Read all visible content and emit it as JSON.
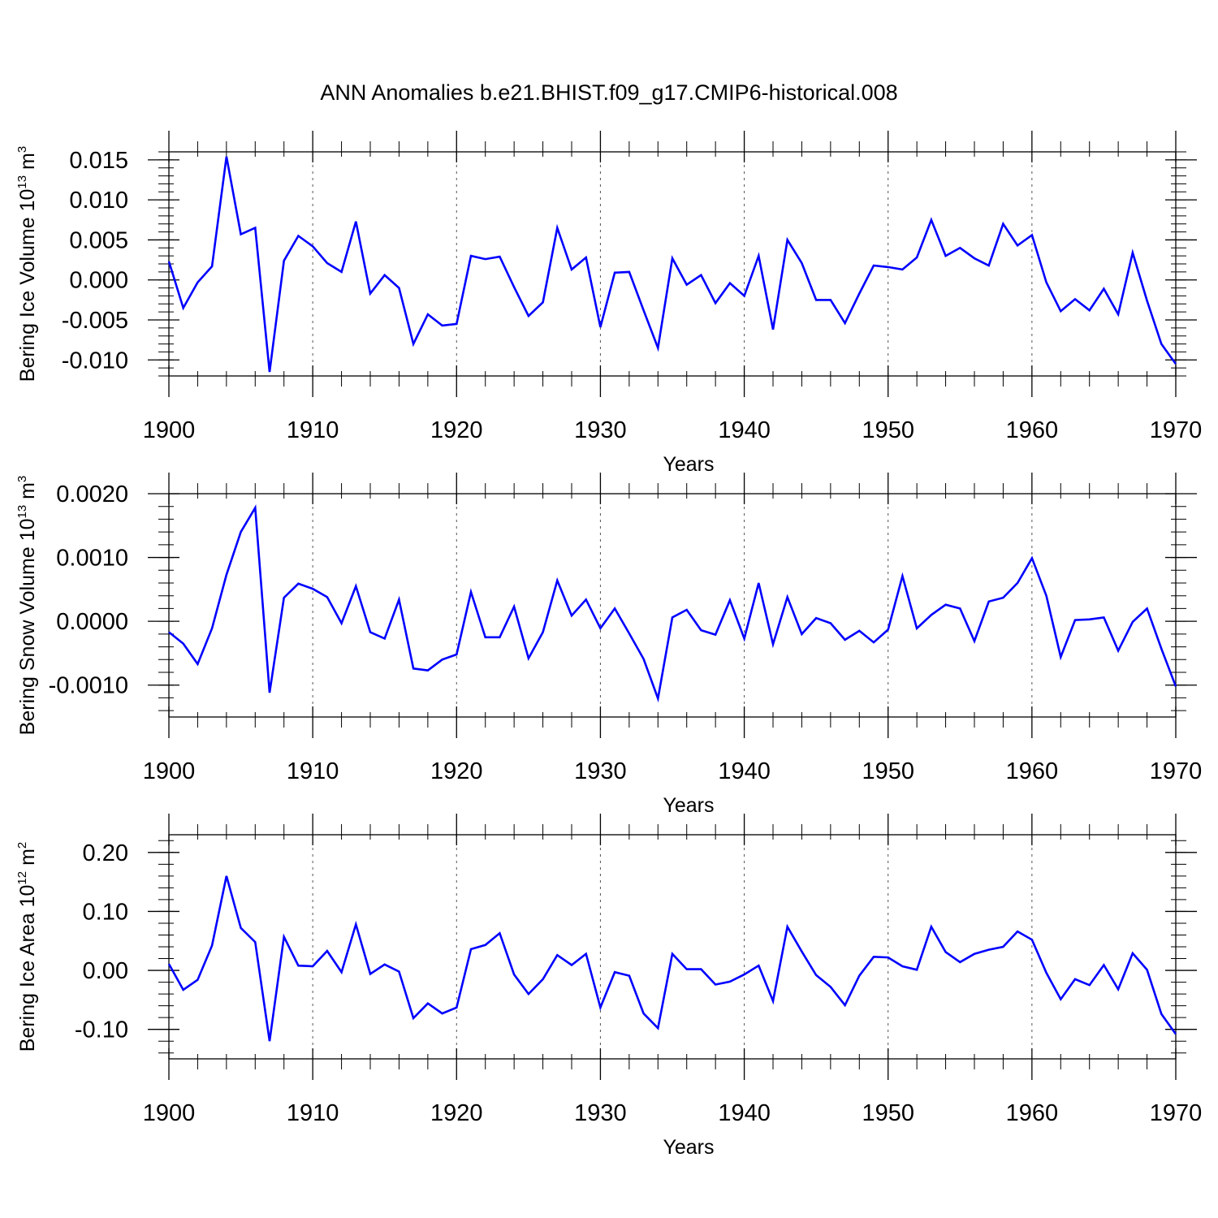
{
  "title": "ANN Anomalies b.e21.BHIST.f09_g17.CMIP6-historical.008",
  "chart_data": [
    {
      "type": "line",
      "title": "ANN Anomalies b.e21.BHIST.f09_g17.CMIP6-historical.008",
      "ylabel": "Bering Ice Volume 10",
      "ylabel_exponent": "13",
      "ylabel_unit": " m",
      "ylabel_unit_exponent": "3",
      "xlabel": "Years",
      "xlim": [
        1900,
        1970
      ],
      "ylim": [
        -0.012,
        0.016
      ],
      "x_ticks": [
        1900,
        1910,
        1920,
        1930,
        1940,
        1950,
        1960,
        1970
      ],
      "x_tick_labels": [
        "1900",
        "1910",
        "1920",
        "1930",
        "1940",
        "1950",
        "1960",
        "1970"
      ],
      "y_ticks": [
        -0.01,
        -0.005,
        0.0,
        0.005,
        0.01,
        0.015
      ],
      "y_tick_labels": [
        "-0.010",
        "-0.005",
        "0.000",
        "0.005",
        "0.010",
        "0.015"
      ],
      "y_minor_step": 0.001,
      "color": "#0000ff",
      "grid": "dashed vertical at major x ticks",
      "series": [
        {
          "name": "Bering Ice Volume",
          "x": [
            1900,
            1901,
            1902,
            1903,
            1904,
            1905,
            1906,
            1907,
            1908,
            1909,
            1910,
            1911,
            1912,
            1913,
            1914,
            1915,
            1916,
            1917,
            1918,
            1919,
            1920,
            1921,
            1922,
            1923,
            1924,
            1925,
            1926,
            1927,
            1928,
            1929,
            1930,
            1931,
            1932,
            1933,
            1934,
            1935,
            1936,
            1937,
            1938,
            1939,
            1940,
            1941,
            1942,
            1943,
            1944,
            1945,
            1946,
            1947,
            1948,
            1949,
            1950,
            1951,
            1952,
            1953,
            1954,
            1955,
            1956,
            1957,
            1958,
            1959,
            1960,
            1961,
            1962,
            1963,
            1964,
            1965,
            1966,
            1967,
            1968,
            1969,
            1970
          ],
          "values": [
            0.0023,
            -0.0035,
            -0.0003,
            0.0017,
            0.0154,
            0.0057,
            0.0065,
            -0.0115,
            0.0024,
            0.0055,
            0.0042,
            0.0021,
            0.001,
            0.0073,
            -0.0017,
            0.0006,
            -0.001,
            -0.008,
            -0.0043,
            -0.0057,
            -0.0055,
            0.003,
            0.0026,
            0.0029,
            -0.0009,
            -0.0045,
            -0.0028,
            0.0065,
            0.0013,
            0.0028,
            -0.0059,
            0.0009,
            0.001,
            -0.0038,
            -0.0085,
            0.0027,
            -0.0006,
            0.0006,
            -0.0029,
            -0.0004,
            -0.002,
            0.003,
            -0.0062,
            0.005,
            0.0021,
            -0.0025,
            -0.0025,
            -0.0054,
            -0.0017,
            0.0018,
            0.0016,
            0.0013,
            0.0028,
            0.0075,
            0.003,
            0.004,
            0.0027,
            0.0018,
            0.007,
            0.0043,
            0.0056,
            -0.0003,
            -0.0039,
            -0.0024,
            -0.0038,
            -0.0011,
            -0.0043,
            0.0034,
            -0.0026,
            -0.008,
            -0.0105
          ]
        }
      ]
    },
    {
      "type": "line",
      "ylabel": "Bering Snow Volume 10",
      "ylabel_exponent": "13",
      "ylabel_unit": " m",
      "ylabel_unit_exponent": "3",
      "xlabel": "Years",
      "xlim": [
        1900,
        1970
      ],
      "ylim": [
        -0.0015,
        0.002
      ],
      "x_ticks": [
        1900,
        1910,
        1920,
        1930,
        1940,
        1950,
        1960,
        1970
      ],
      "x_tick_labels": [
        "1900",
        "1910",
        "1920",
        "1930",
        "1940",
        "1950",
        "1960",
        "1970"
      ],
      "y_ticks": [
        -0.001,
        0.0,
        0.001,
        0.002
      ],
      "y_tick_labels": [
        "-0.0010",
        "0.0000",
        "0.0010",
        "0.0020"
      ],
      "y_minor_step": 0.0002,
      "color": "#0000ff",
      "grid": "dashed vertical at major x ticks",
      "series": [
        {
          "name": "Bering Snow Volume",
          "x": [
            1900,
            1901,
            1902,
            1903,
            1904,
            1905,
            1906,
            1907,
            1908,
            1909,
            1910,
            1911,
            1912,
            1913,
            1914,
            1915,
            1916,
            1917,
            1918,
            1919,
            1920,
            1921,
            1922,
            1923,
            1924,
            1925,
            1926,
            1927,
            1928,
            1929,
            1930,
            1931,
            1932,
            1933,
            1934,
            1935,
            1936,
            1937,
            1938,
            1939,
            1940,
            1941,
            1942,
            1943,
            1944,
            1945,
            1946,
            1947,
            1948,
            1949,
            1950,
            1951,
            1952,
            1953,
            1954,
            1955,
            1956,
            1957,
            1958,
            1959,
            1960,
            1961,
            1962,
            1963,
            1964,
            1965,
            1966,
            1967,
            1968,
            1969,
            1970
          ],
          "values": [
            -0.00017,
            -0.00035,
            -0.00067,
            -0.00011,
            0.00073,
            0.0014,
            0.00178,
            -0.00112,
            0.00037,
            0.00059,
            0.00051,
            0.00038,
            -3e-05,
            0.00055,
            -0.00017,
            -0.00027,
            0.00034,
            -0.00074,
            -0.00077,
            -0.0006,
            -0.00052,
            0.00046,
            -0.00025,
            -0.00025,
            0.00023,
            -0.00058,
            -0.00017,
            0.00064,
            9e-05,
            0.00034,
            -0.00011,
            0.0002,
            -0.00019,
            -0.00059,
            -0.00121,
            6e-05,
            0.00018,
            -0.00014,
            -0.00021,
            0.00033,
            -0.00027,
            0.0006,
            -0.00036,
            0.00038,
            -0.0002,
            5e-05,
            -3e-05,
            -0.00029,
            -0.00015,
            -0.00033,
            -0.00013,
            0.00071,
            -0.00011,
            0.0001,
            0.00026,
            0.0002,
            -0.00031,
            0.00031,
            0.00037,
            0.0006,
            0.00099,
            0.0004,
            -0.00056,
            2e-05,
            3e-05,
            6e-05,
            -0.00046,
            -1e-05,
            0.0002,
            -0.00043,
            -0.00102
          ]
        }
      ]
    },
    {
      "type": "line",
      "ylabel": "Bering Ice Area 10",
      "ylabel_exponent": "12",
      "ylabel_unit": " m",
      "ylabel_unit_exponent": "2",
      "xlabel": "Years",
      "xlim": [
        1900,
        1970
      ],
      "ylim": [
        -0.15,
        0.23
      ],
      "x_ticks": [
        1900,
        1910,
        1920,
        1930,
        1940,
        1950,
        1960,
        1970
      ],
      "x_tick_labels": [
        "1900",
        "1910",
        "1920",
        "1930",
        "1940",
        "1950",
        "1960",
        "1970"
      ],
      "y_ticks": [
        -0.1,
        0.0,
        0.1,
        0.2
      ],
      "y_tick_labels": [
        "-0.10",
        "0.00",
        "0.10",
        "0.20"
      ],
      "y_minor_step": 0.02,
      "color": "#0000ff",
      "grid": "dashed vertical at major x ticks",
      "series": [
        {
          "name": "Bering Ice Area",
          "x": [
            1900,
            1901,
            1902,
            1903,
            1904,
            1905,
            1906,
            1907,
            1908,
            1909,
            1910,
            1911,
            1912,
            1913,
            1914,
            1915,
            1916,
            1917,
            1918,
            1919,
            1920,
            1921,
            1922,
            1923,
            1924,
            1925,
            1926,
            1927,
            1928,
            1929,
            1930,
            1931,
            1932,
            1933,
            1934,
            1935,
            1936,
            1937,
            1938,
            1939,
            1940,
            1941,
            1942,
            1943,
            1944,
            1945,
            1946,
            1947,
            1948,
            1949,
            1950,
            1951,
            1952,
            1953,
            1954,
            1955,
            1956,
            1957,
            1958,
            1959,
            1960,
            1961,
            1962,
            1963,
            1964,
            1965,
            1966,
            1967,
            1968,
            1969,
            1970
          ],
          "values": [
            0.011,
            -0.033,
            -0.016,
            0.042,
            0.16,
            0.072,
            0.048,
            -0.12,
            0.057,
            0.008,
            0.007,
            0.033,
            -0.003,
            0.078,
            -0.006,
            0.01,
            -0.002,
            -0.081,
            -0.056,
            -0.073,
            -0.063,
            0.036,
            0.043,
            0.063,
            -0.007,
            -0.04,
            -0.015,
            0.026,
            0.009,
            0.028,
            -0.063,
            -0.003,
            -0.009,
            -0.073,
            -0.098,
            0.028,
            0.002,
            0.002,
            -0.024,
            -0.019,
            -0.007,
            0.008,
            -0.052,
            0.074,
            0.032,
            -0.008,
            -0.028,
            -0.059,
            -0.009,
            0.023,
            0.022,
            0.007,
            0.001,
            0.074,
            0.031,
            0.014,
            0.028,
            0.035,
            0.04,
            0.066,
            0.052,
            -0.004,
            -0.049,
            -0.015,
            -0.025,
            0.009,
            -0.032,
            0.029,
            0.001,
            -0.074,
            -0.108
          ]
        }
      ]
    }
  ]
}
